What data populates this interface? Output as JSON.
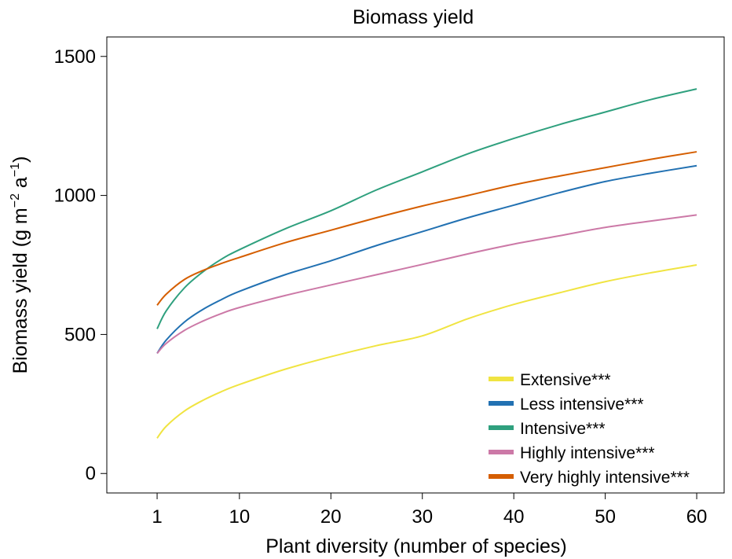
{
  "chart_data": {
    "type": "line",
    "title": "Biomass yield",
    "xlabel": "Plant diversity (number of species)",
    "ylabel": "Biomass yield (g m",
    "ylabel_sup1": "−2",
    "ylabel_mid": " a",
    "ylabel_sup2": "−1",
    "ylabel_end": ")",
    "xlim": [
      -4.5,
      63
    ],
    "ylim": [
      -70,
      1570
    ],
    "xticks": [
      1,
      10,
      20,
      30,
      40,
      50,
      60
    ],
    "yticks": [
      0,
      500,
      1000,
      1500
    ],
    "grid": false,
    "legend_position": "bottom-right",
    "x": [
      1,
      2,
      4,
      6,
      8,
      10,
      15,
      20,
      25,
      30,
      35,
      40,
      45,
      50,
      55,
      60
    ],
    "series": [
      {
        "name": "Extensive***",
        "color": "#F0E442",
        "values": [
          127,
          170,
          225,
          263,
          294,
          320,
          375,
          420,
          460,
          495,
          557,
          608,
          650,
          690,
          722,
          750
        ]
      },
      {
        "name": "Less intensive***",
        "color": "#2271B2",
        "values": [
          432,
          480,
          545,
          590,
          625,
          655,
          715,
          765,
          820,
          870,
          920,
          965,
          1010,
          1050,
          1080,
          1107
        ]
      },
      {
        "name": "Intensive***",
        "color": "#2FA07E",
        "values": [
          520,
          585,
          668,
          725,
          770,
          805,
          880,
          945,
          1020,
          1085,
          1150,
          1205,
          1255,
          1300,
          1345,
          1383
        ]
      },
      {
        "name": "Highly intensive***",
        "color": "#CC79A7",
        "values": [
          432,
          468,
          515,
          548,
          575,
          597,
          640,
          678,
          715,
          752,
          790,
          825,
          855,
          885,
          908,
          930
        ]
      },
      {
        "name": "Very highly intensive***",
        "color": "#D55E00",
        "values": [
          605,
          645,
          698,
          730,
          755,
          777,
          830,
          875,
          920,
          962,
          1000,
          1038,
          1070,
          1100,
          1130,
          1157
        ]
      }
    ]
  }
}
